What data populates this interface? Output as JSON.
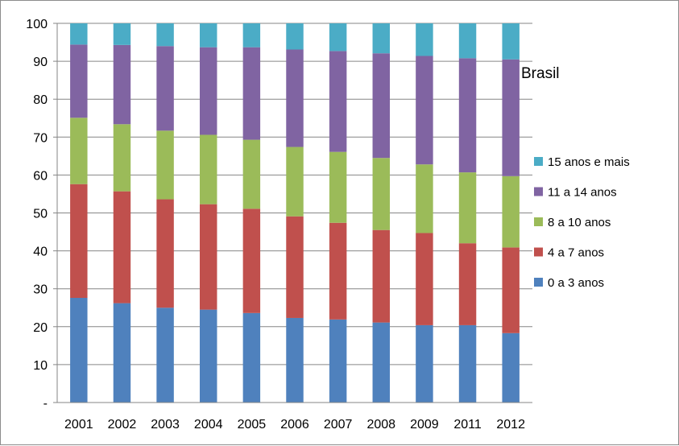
{
  "chart_data": {
    "type": "bar",
    "stacked": true,
    "title": "Brasil",
    "categories": [
      "2001",
      "2002",
      "2003",
      "2004",
      "2005",
      "2006",
      "2007",
      "2008",
      "2009",
      "2011",
      "2012"
    ],
    "ylim": [
      0,
      100
    ],
    "yticks": [
      "-",
      "10",
      "20",
      "30",
      "40",
      "50",
      "60",
      "70",
      "80",
      "90",
      "100"
    ],
    "grid": true,
    "legend_position": "right",
    "series": [
      {
        "name": "0 a 3 anos",
        "color": "#4f81bd",
        "values": [
          27.6,
          26.2,
          25.0,
          24.5,
          23.6,
          22.3,
          21.9,
          21.1,
          20.4,
          20.4,
          18.3
        ]
      },
      {
        "name": "4 a 7 anos",
        "color": "#c0504d",
        "values": [
          30.0,
          29.5,
          28.6,
          27.8,
          27.5,
          26.8,
          25.5,
          24.4,
          24.3,
          21.6,
          22.6
        ]
      },
      {
        "name": "8 a 10 anos",
        "color": "#9bbb59",
        "values": [
          17.5,
          17.7,
          18.1,
          18.3,
          18.2,
          18.3,
          18.7,
          19.0,
          18.1,
          18.7,
          18.8
        ]
      },
      {
        "name": "11 a 14 anos",
        "color": "#8064a2",
        "values": [
          19.3,
          20.9,
          22.3,
          23.1,
          24.4,
          25.7,
          26.6,
          27.6,
          28.6,
          30.1,
          30.8
        ]
      },
      {
        "name": "15 anos e mais",
        "color": "#4bacc6",
        "values": [
          5.6,
          5.7,
          6.0,
          6.3,
          6.3,
          6.9,
          7.3,
          7.9,
          8.6,
          9.2,
          9.5
        ]
      }
    ]
  }
}
